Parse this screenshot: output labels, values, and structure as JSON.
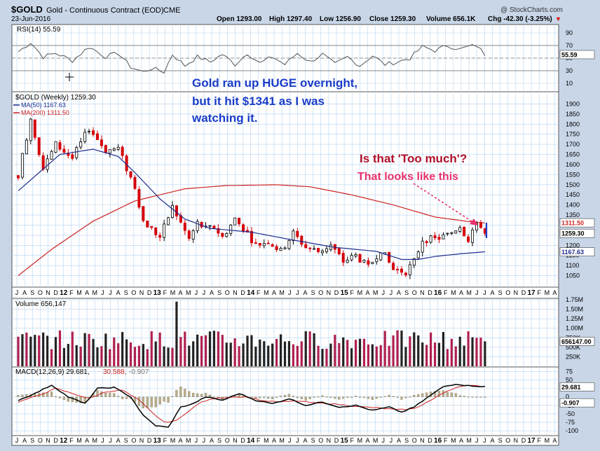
{
  "header": {
    "symbol": "$GOLD",
    "name": "Gold - Continuous Contract (EOD)",
    "exchange": "CME",
    "date": "23-Jun-2016",
    "watermark": "@ StockCharts.com",
    "open": "Open 1293.00",
    "high": "High 1297.40",
    "low": "Low 1256.90",
    "close": "Close 1259.30",
    "volume": "Volume 656.1K",
    "chg": "Chg -42.30 (-3.25%)",
    "chg_arrow": "▼"
  },
  "legend": {
    "rsi": "RSI(14) 55.59",
    "price": "$GOLD (Weekly) 1259.30",
    "ma50": "MA(50) 1167.63",
    "ma200": "MA(200) 1311.50",
    "volume": "Volume 656,147",
    "macd_a": "MACD(12,26,9) 29.681,",
    "macd_b": "30.588,",
    "macd_c": "-0.907"
  },
  "annotations": {
    "blue_1": "Gold ran up HUGE overnight,",
    "blue_2": "but it hit $1341 as I was",
    "blue_3": "watching it.",
    "red": "Is that 'Too much'?",
    "pink": "That looks like this"
  },
  "colors": {
    "background": "#c8d6e8",
    "panel": "#ffffff",
    "grid": "#b4d4f0",
    "up": "#000000",
    "down": "#d4000a",
    "ma50": "#1f2c8f",
    "ma200": "#cc2222",
    "volume_up": "#222222",
    "volume_down": "#b02050",
    "annotation_blue": "#1a3cc8",
    "annotation_red": "#b0102a",
    "annotation_pink": "#e8306c"
  },
  "chart_data": {
    "type": "candlestick",
    "interval": "weekly",
    "x_axis_labels": [
      "J",
      "A",
      "S",
      "O",
      "N",
      "D",
      "12",
      "F",
      "M",
      "A",
      "M",
      "J",
      "J",
      "A",
      "S",
      "O",
      "N",
      "D",
      "13",
      "F",
      "M",
      "A",
      "M",
      "J",
      "J",
      "A",
      "S",
      "O",
      "N",
      "D",
      "14",
      "F",
      "M",
      "A",
      "M",
      "J",
      "J",
      "A",
      "S",
      "O",
      "N",
      "D",
      "15",
      "F",
      "M",
      "A",
      "M",
      "J",
      "J",
      "A",
      "S",
      "O",
      "N",
      "D",
      "16",
      "F",
      "M",
      "A",
      "M",
      "J",
      "J",
      "A",
      "S",
      "O",
      "N",
      "D",
      "17",
      "F",
      "M",
      "A"
    ],
    "price_panel": {
      "ylim": [
        1000,
        1950
      ],
      "y_ticks": [
        1050,
        1100,
        1150,
        1200,
        1250,
        1300,
        1350,
        1400,
        1450,
        1500,
        1550,
        1600,
        1650,
        1700,
        1750,
        1800,
        1850,
        1900
      ],
      "last_close": 1259.3,
      "last_labels": {
        "ma200": "1311.50",
        "close": "1259.30",
        "ma50": "1167.63"
      },
      "price_keypoints": [
        [
          0,
          1550
        ],
        [
          3,
          1830
        ],
        [
          6,
          1580
        ],
        [
          9,
          1700
        ],
        [
          13,
          1630
        ],
        [
          17,
          1780
        ],
        [
          21,
          1670
        ],
        [
          24,
          1680
        ],
        [
          26,
          1580
        ],
        [
          28,
          1490
        ],
        [
          30,
          1320
        ],
        [
          32,
          1280
        ],
        [
          34,
          1240
        ],
        [
          37,
          1390
        ],
        [
          41,
          1230
        ],
        [
          43,
          1310
        ],
        [
          45,
          1280
        ],
        [
          47,
          1290
        ],
        [
          49,
          1240
        ],
        [
          52,
          1330
        ],
        [
          55,
          1260
        ],
        [
          57,
          1200
        ],
        [
          60,
          1220
        ],
        [
          63,
          1170
        ],
        [
          66,
          1260
        ],
        [
          69,
          1190
        ],
        [
          72,
          1170
        ],
        [
          75,
          1200
        ],
        [
          78,
          1120
        ],
        [
          81,
          1150
        ],
        [
          84,
          1090
        ],
        [
          87,
          1180
        ],
        [
          90,
          1080
        ],
        [
          93,
          1070
        ],
        [
          95,
          1120
        ],
        [
          97,
          1230
        ],
        [
          100,
          1230
        ],
        [
          103,
          1250
        ],
        [
          105,
          1280
        ],
        [
          106,
          1300
        ],
        [
          107,
          1260
        ],
        [
          108,
          1230
        ],
        [
          109,
          1276
        ],
        [
          110,
          1294
        ],
        [
          111,
          1300
        ],
        [
          112,
          1259
        ]
      ],
      "ma50_keypoints": [
        [
          0,
          1470
        ],
        [
          10,
          1650
        ],
        [
          18,
          1676
        ],
        [
          24,
          1640
        ],
        [
          28,
          1560
        ],
        [
          34,
          1430
        ],
        [
          40,
          1330
        ],
        [
          46,
          1284
        ],
        [
          56,
          1265
        ],
        [
          66,
          1226
        ],
        [
          76,
          1190
        ],
        [
          86,
          1170
        ],
        [
          92,
          1130
        ],
        [
          96,
          1130
        ],
        [
          100,
          1145
        ],
        [
          106,
          1158
        ],
        [
          112,
          1168
        ]
      ],
      "ma200_keypoints": [
        [
          0,
          1050
        ],
        [
          8,
          1180
        ],
        [
          18,
          1320
        ],
        [
          28,
          1420
        ],
        [
          40,
          1480
        ],
        [
          50,
          1496
        ],
        [
          62,
          1500
        ],
        [
          70,
          1490
        ],
        [
          80,
          1450
        ],
        [
          90,
          1400
        ],
        [
          100,
          1340
        ],
        [
          108,
          1318
        ],
        [
          112,
          1311
        ]
      ]
    },
    "rsi_panel": {
      "label": "RSI(14)",
      "value": 55.59,
      "ylim": [
        0,
        100
      ],
      "y_ticks": [
        10,
        30,
        50,
        70,
        90
      ],
      "reference_lines": [
        30,
        70
      ],
      "series_keypoints": [
        [
          0,
          60
        ],
        [
          3,
          75
        ],
        [
          6,
          52
        ],
        [
          9,
          58
        ],
        [
          13,
          46
        ],
        [
          17,
          68
        ],
        [
          21,
          52
        ],
        [
          24,
          58
        ],
        [
          27,
          36
        ],
        [
          30,
          28
        ],
        [
          32,
          34
        ],
        [
          35,
          28
        ],
        [
          37,
          56
        ],
        [
          40,
          38
        ],
        [
          43,
          52
        ],
        [
          46,
          44
        ],
        [
          49,
          56
        ],
        [
          52,
          40
        ],
        [
          55,
          58
        ],
        [
          58,
          42
        ],
        [
          61,
          52
        ],
        [
          64,
          40
        ],
        [
          67,
          58
        ],
        [
          70,
          44
        ],
        [
          73,
          56
        ],
        [
          76,
          40
        ],
        [
          79,
          52
        ],
        [
          82,
          38
        ],
        [
          85,
          54
        ],
        [
          88,
          40
        ],
        [
          91,
          44
        ],
        [
          94,
          50
        ],
        [
          97,
          68
        ],
        [
          100,
          62
        ],
        [
          103,
          70
        ],
        [
          106,
          64
        ],
        [
          108,
          68
        ],
        [
          110,
          70
        ],
        [
          112,
          56
        ]
      ]
    },
    "volume_panel": {
      "label": "Volume",
      "value": 656147,
      "ylim": [
        0,
        1750000
      ],
      "y_tick_labels": [
        "250K",
        "500K",
        "750K",
        "1.00M",
        "1.25M",
        "1.50M",
        "1.75M"
      ],
      "y_tick_values": [
        250000,
        500000,
        750000,
        1000000,
        1250000,
        1500000,
        1750000
      ],
      "last_label": "656147.00",
      "spike_week": 38,
      "spike_value": 1700000,
      "typical_range": [
        450000,
        950000
      ]
    },
    "macd_panel": {
      "label": "MACD(12,26,9)",
      "macd": 29.681,
      "signal": 30.588,
      "histogram": -0.907,
      "ylim": [
        -110,
        80
      ],
      "y_ticks": [
        -100,
        -75,
        -50,
        -25,
        0,
        25,
        50,
        75
      ],
      "last_labels": {
        "macd": "29.681",
        "histogram": "-0.907"
      },
      "macd_keypoints": [
        [
          0,
          -10
        ],
        [
          4,
          10
        ],
        [
          8,
          35
        ],
        [
          12,
          0
        ],
        [
          16,
          -20
        ],
        [
          19,
          25
        ],
        [
          23,
          28
        ],
        [
          27,
          0
        ],
        [
          30,
          -55
        ],
        [
          33,
          -85
        ],
        [
          36,
          -90
        ],
        [
          39,
          -30
        ],
        [
          42,
          -20
        ],
        [
          45,
          0
        ],
        [
          49,
          -10
        ],
        [
          53,
          10
        ],
        [
          57,
          -10
        ],
        [
          61,
          -20
        ],
        [
          65,
          -5
        ],
        [
          69,
          -25
        ],
        [
          73,
          -15
        ],
        [
          77,
          -30
        ],
        [
          81,
          -25
        ],
        [
          85,
          -40
        ],
        [
          89,
          -30
        ],
        [
          92,
          -45
        ],
        [
          95,
          -30
        ],
        [
          99,
          5
        ],
        [
          102,
          30
        ],
        [
          105,
          38
        ],
        [
          108,
          33
        ],
        [
          110,
          32
        ],
        [
          112,
          30
        ]
      ],
      "signal_keypoints": [
        [
          0,
          -15
        ],
        [
          5,
          5
        ],
        [
          9,
          25
        ],
        [
          13,
          10
        ],
        [
          17,
          -5
        ],
        [
          21,
          15
        ],
        [
          25,
          20
        ],
        [
          29,
          -10
        ],
        [
          32,
          -45
        ],
        [
          35,
          -75
        ],
        [
          38,
          -70
        ],
        [
          41,
          -40
        ],
        [
          44,
          -15
        ],
        [
          47,
          -5
        ],
        [
          51,
          0
        ],
        [
          55,
          0
        ],
        [
          59,
          -12
        ],
        [
          63,
          -15
        ],
        [
          67,
          -12
        ],
        [
          71,
          -18
        ],
        [
          75,
          -20
        ],
        [
          79,
          -25
        ],
        [
          83,
          -30
        ],
        [
          87,
          -33
        ],
        [
          91,
          -38
        ],
        [
          95,
          -35
        ],
        [
          99,
          -10
        ],
        [
          103,
          18
        ],
        [
          106,
          32
        ],
        [
          109,
          33
        ],
        [
          112,
          31
        ]
      ]
    }
  }
}
